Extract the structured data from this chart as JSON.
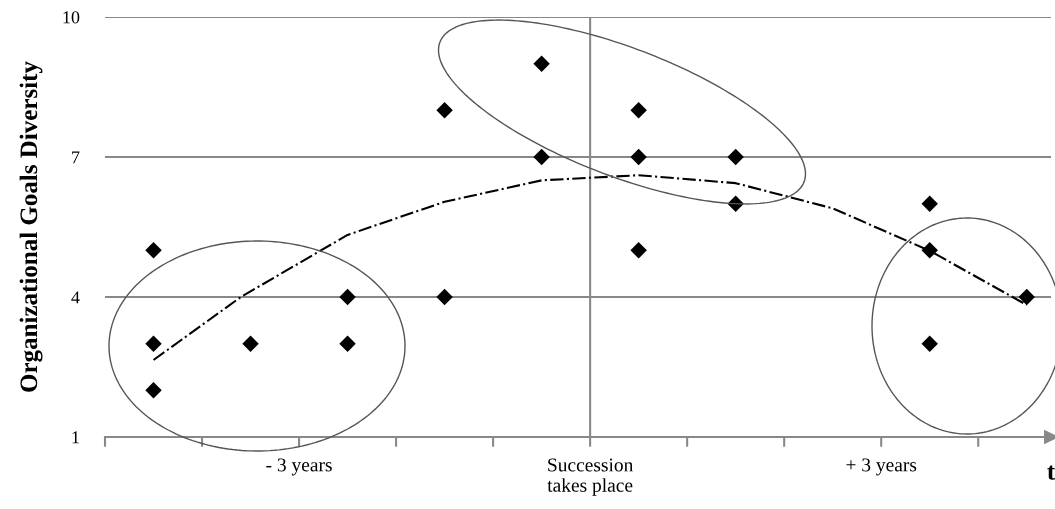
{
  "chart_data": {
    "type": "scatter",
    "ylabel": "Organizational Goals Diversity",
    "xlabel": "t",
    "xlim": [
      -5,
      4.75
    ],
    "xticks": [
      {
        "value": -5,
        "label": null
      },
      {
        "value": -4,
        "label": null
      },
      {
        "value": -3,
        "label": "- 3 years"
      },
      {
        "value": -2,
        "label": null
      },
      {
        "value": -1,
        "label": null
      },
      {
        "value": 0,
        "label": "Succession\ntakes place"
      },
      {
        "value": 1,
        "label": null
      },
      {
        "value": 2,
        "label": null
      },
      {
        "value": 3,
        "label": "+ 3 years"
      },
      {
        "value": 4,
        "label": null
      }
    ],
    "ylim": [
      1,
      10
    ],
    "yticks": [
      1,
      4,
      7,
      10
    ],
    "grid": "y",
    "ref_lines": [
      {
        "axis": "x",
        "value": 0,
        "color": "#888888"
      }
    ],
    "series": [
      {
        "color": "#000000",
        "marker": "diamond",
        "x": [
          -4.5,
          -4.5,
          -4.5,
          -3.5,
          -2.5,
          -2.5,
          -1.5,
          -1.5,
          -0.5,
          -0.5,
          0.5,
          0.5,
          0.5,
          1.5,
          1.5,
          3.5,
          3.5,
          3.5,
          4.5
        ],
        "values": [
          5,
          3,
          2,
          3,
          4,
          3,
          8,
          4,
          9,
          7,
          8,
          7,
          5,
          7,
          6,
          6,
          5,
          3,
          4
        ]
      },
      {
        "type": "line",
        "color": "#000000",
        "line_style": "dashdot",
        "marker": "none",
        "x": [
          -4.5,
          -3.6,
          -2.5,
          -1.5,
          -0.5,
          0.5,
          1.5,
          2.5,
          3.5,
          4.5
        ],
        "values": [
          2.65,
          4.0,
          5.33,
          6.04,
          6.5,
          6.61,
          6.44,
          5.9,
          4.99,
          3.83
        ]
      }
    ]
  }
}
